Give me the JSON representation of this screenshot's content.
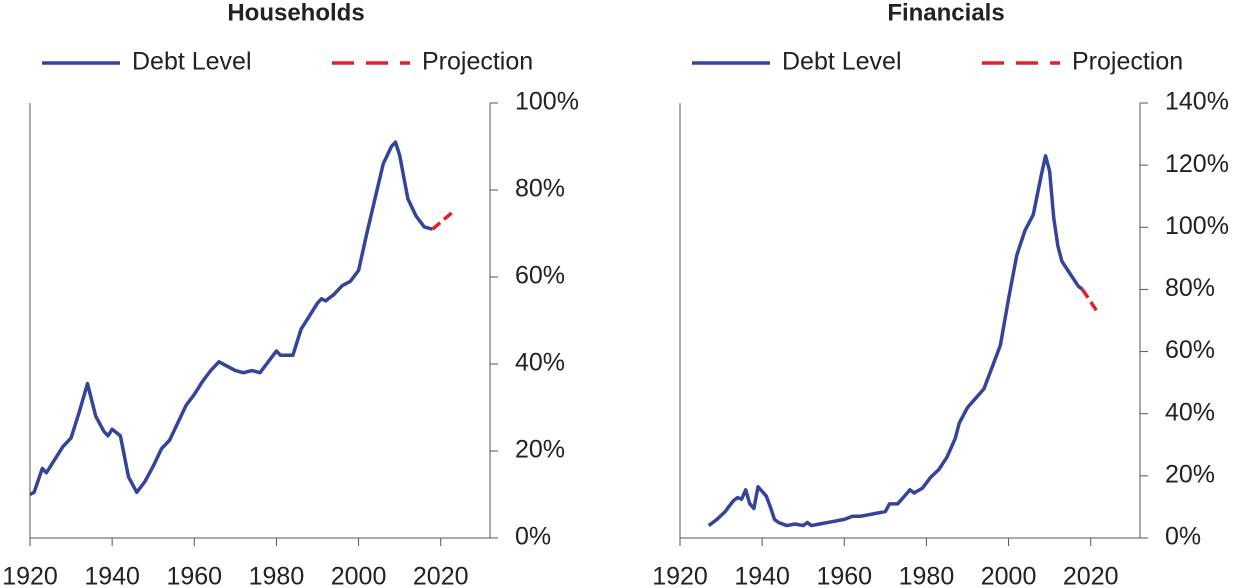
{
  "chart_data": [
    {
      "type": "line",
      "title": "Households",
      "xlim": [
        1920,
        2032
      ],
      "ylim": [
        0,
        100
      ],
      "xticks": [
        1920,
        1940,
        1960,
        1980,
        2000,
        2020
      ],
      "yticks": [
        {
          "value": 0,
          "label": "0%"
        },
        {
          "value": 20,
          "label": "20%"
        },
        {
          "value": 40,
          "label": "40%"
        },
        {
          "value": 60,
          "label": "60%"
        },
        {
          "value": 80,
          "label": "80%"
        },
        {
          "value": 100,
          "label": "100%"
        }
      ],
      "series": [
        {
          "name": "Debt Level",
          "color": "#33449a",
          "dash": false,
          "x": [
            1920,
            1921,
            1923,
            1924,
            1926,
            1928,
            1930,
            1932,
            1934,
            1936,
            1938,
            1939,
            1940,
            1942,
            1944,
            1946,
            1948,
            1950,
            1952,
            1954,
            1956,
            1958,
            1960,
            1962,
            1964,
            1966,
            1968,
            1970,
            1972,
            1974,
            1976,
            1978,
            1980,
            1981,
            1982,
            1984,
            1986,
            1988,
            1990,
            1991,
            1992,
            1994,
            1996,
            1998,
            2000,
            2002,
            2004,
            2006,
            2008,
            2009,
            2010,
            2012,
            2014,
            2016,
            2018
          ],
          "values": [
            10,
            10.5,
            16,
            15,
            18,
            21,
            23,
            29,
            35.5,
            28,
            24.5,
            23.5,
            25,
            23.5,
            14,
            10.5,
            13,
            16.5,
            20.5,
            22.5,
            26.5,
            30.5,
            33,
            36,
            38.5,
            40.5,
            39.5,
            38.5,
            38,
            38.5,
            38,
            40.5,
            43,
            42,
            42,
            42,
            48,
            51,
            54,
            55,
            54.5,
            56,
            58,
            59,
            61.5,
            70,
            78,
            86,
            90,
            91,
            88,
            78,
            74,
            71.5,
            71
          ]
        },
        {
          "name": "Projection",
          "color": "#e0202a",
          "dash": true,
          "x": [
            2018,
            2023
          ],
          "values": [
            71,
            75
          ]
        }
      ]
    },
    {
      "type": "line",
      "title": "Financials",
      "xlim": [
        1920,
        2032
      ],
      "ylim": [
        0,
        140
      ],
      "xticks": [
        1920,
        1940,
        1960,
        1980,
        2000,
        2020
      ],
      "yticks": [
        {
          "value": 0,
          "label": "0%"
        },
        {
          "value": 20,
          "label": "20%"
        },
        {
          "value": 40,
          "label": "40%"
        },
        {
          "value": 60,
          "label": "60%"
        },
        {
          "value": 80,
          "label": "80%"
        },
        {
          "value": 100,
          "label": "100%"
        },
        {
          "value": 120,
          "label": "120%"
        },
        {
          "value": 140,
          "label": "140%"
        }
      ],
      "series": [
        {
          "name": "Debt Level",
          "color": "#33449a",
          "dash": false,
          "x": [
            1927,
            1929,
            1931,
            1933,
            1934,
            1935,
            1936,
            1937,
            1938,
            1939,
            1940,
            1941,
            1942,
            1943,
            1944,
            1946,
            1948,
            1950,
            1951,
            1952,
            1954,
            1956,
            1958,
            1960,
            1962,
            1964,
            1966,
            1968,
            1970,
            1971,
            1973,
            1975,
            1976,
            1977,
            1979,
            1981,
            1983,
            1985,
            1987,
            1988,
            1990,
            1992,
            1994,
            1996,
            1998,
            2000,
            2002,
            2004,
            2006,
            2008,
            2009,
            2010,
            2011,
            2012,
            2013,
            2015,
            2017,
            2018
          ],
          "values": [
            4,
            6,
            8.5,
            12,
            13,
            12.5,
            15.5,
            11,
            9.5,
            16.5,
            15,
            13.5,
            10,
            6,
            5,
            4,
            4.5,
            4,
            5,
            4,
            4.5,
            5,
            5.5,
            6,
            7,
            7,
            7.5,
            8,
            8.5,
            11,
            11,
            14,
            15.5,
            14.5,
            16,
            19.5,
            22,
            26,
            32,
            37,
            42,
            45,
            48,
            55,
            62,
            77,
            91,
            99,
            104,
            117,
            123,
            118,
            103,
            94,
            89,
            85,
            81,
            80
          ]
        },
        {
          "name": "Projection",
          "color": "#e0202a",
          "dash": true,
          "x": [
            2018,
            2022
          ],
          "values": [
            80,
            72
          ]
        }
      ]
    }
  ]
}
